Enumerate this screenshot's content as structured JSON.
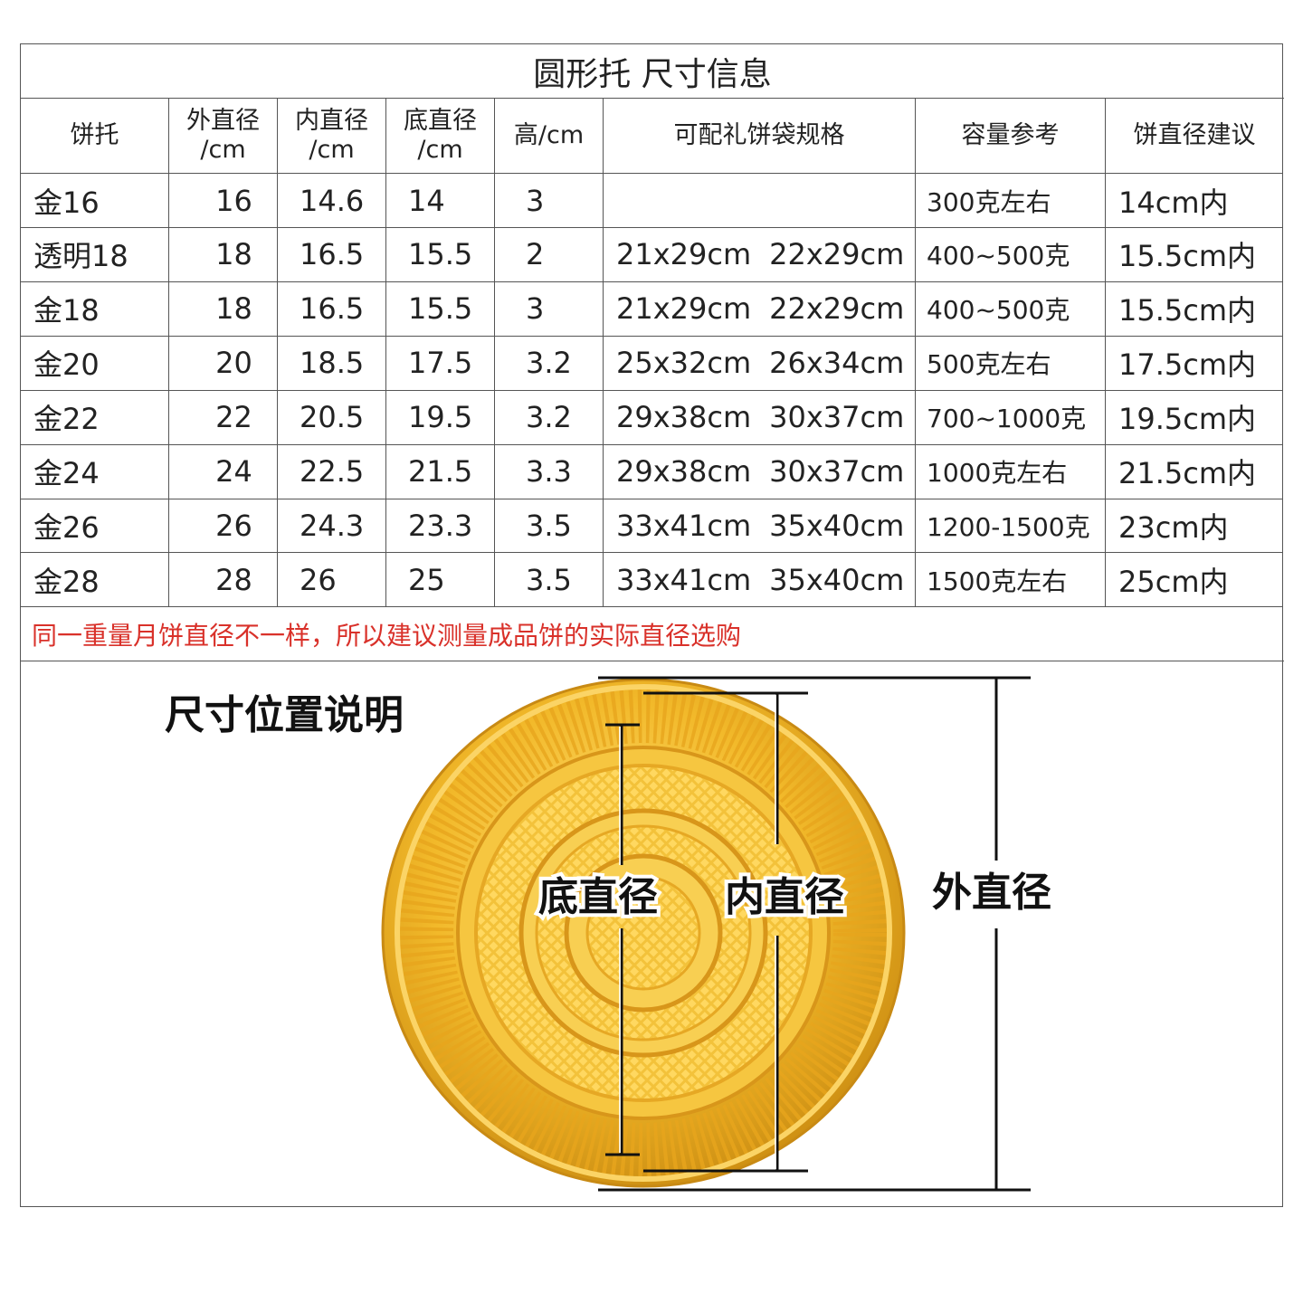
{
  "table": {
    "title": "圆形托 尺寸信息",
    "header": [
      [
        "饼托"
      ],
      [
        "外直径",
        "/cm"
      ],
      [
        "内直径",
        "/cm"
      ],
      [
        "底直径",
        "/cm"
      ],
      [
        "高/cm"
      ],
      [
        "可配礼饼袋规格"
      ],
      [
        "容量参考"
      ],
      [
        "饼直径建议"
      ]
    ],
    "rows": [
      [
        "金16",
        "16",
        "14.6",
        "14",
        "3",
        [],
        "300克左右",
        "14cm内"
      ],
      [
        "透明18",
        "18",
        "16.5",
        "15.5",
        "2",
        [
          "21x29cm",
          "22x29cm"
        ],
        "400~500克",
        "15.5cm内"
      ],
      [
        "金18",
        "18",
        "16.5",
        "15.5",
        "3",
        [
          "21x29cm",
          "22x29cm"
        ],
        "400~500克",
        "15.5cm内"
      ],
      [
        "金20",
        "20",
        "18.5",
        "17.5",
        "3.2",
        [
          "25x32cm",
          "26x34cm"
        ],
        "500克左右",
        "17.5cm内"
      ],
      [
        "金22",
        "22",
        "20.5",
        "19.5",
        "3.2",
        [
          "29x38cm",
          "30x37cm"
        ],
        "700~1000克",
        "19.5cm内"
      ],
      [
        "金24",
        "24",
        "22.5",
        "21.5",
        "3.3",
        [
          "29x38cm",
          "30x37cm"
        ],
        "1000克左右",
        "21.5cm内"
      ],
      [
        "金26",
        "26",
        "24.3",
        "23.3",
        "3.5",
        [
          "33x41cm",
          "35x40cm"
        ],
        "1200-1500克",
        "23cm内"
      ],
      [
        "金28",
        "28",
        "26",
        "25",
        "3.5",
        [
          "33x41cm",
          "35x40cm"
        ],
        "1500克左右",
        "25cm内"
      ]
    ],
    "note": "同一重量月饼直径不一样，所以建议测量成品饼的实际直径选购"
  },
  "diagram": {
    "title": "尺寸位置说明",
    "labels": {
      "bottom": "底直径",
      "inner": "内直径",
      "outer": "外直径"
    }
  }
}
